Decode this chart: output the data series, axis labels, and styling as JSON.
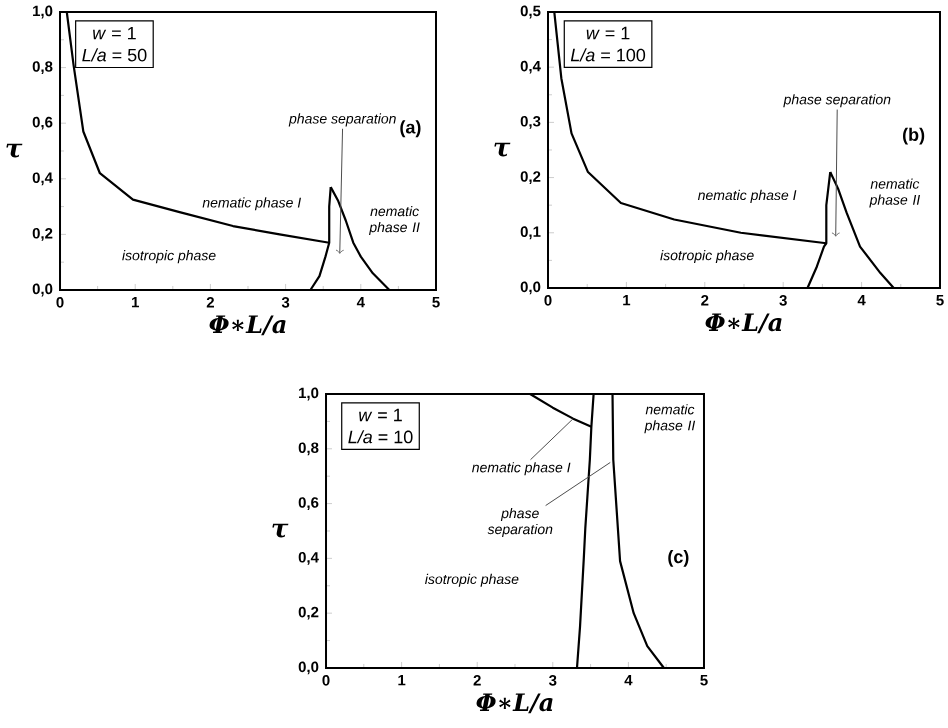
{
  "chart_data": [
    {
      "type": "line",
      "xlabel": "Φ∗L/a",
      "ylabel": "τ",
      "xlim": [
        0,
        5
      ],
      "xticks": [
        0,
        1,
        2,
        3,
        4,
        5
      ],
      "ylim": [
        0,
        1
      ],
      "yticks": [
        {
          "value": 0,
          "label": "0,0"
        },
        {
          "value": 0.2,
          "label": "0,2"
        },
        {
          "value": 0.4,
          "label": "0,4"
        },
        {
          "value": 0.6,
          "label": "0,6"
        },
        {
          "value": 0.8,
          "label": "0,8"
        },
        {
          "value": 1,
          "label": "1,0"
        }
      ],
      "series": [
        {
          "color": "#000000",
          "x": [
            0.09,
            0.18,
            0.31,
            0.53,
            0.97,
            1.59,
            2.3,
            2.92,
            3.58
          ],
          "values": [
            1.0,
            0.81,
            0.57,
            0.42,
            0.325,
            0.28,
            0.23,
            0.2,
            0.17
          ]
        },
        {
          "color": "#000000",
          "x": [
            3.33,
            3.45,
            3.53,
            3.58,
            3.58,
            3.6
          ],
          "values": [
            0,
            0.05,
            0.12,
            0.17,
            0.3,
            0.37
          ]
        },
        {
          "color": "#000000",
          "x": [
            3.6,
            3.7,
            3.8,
            3.9,
            4.0,
            4.16,
            4.38
          ],
          "values": [
            0.37,
            0.32,
            0.25,
            0.17,
            0.12,
            0.06,
            0
          ]
        }
      ],
      "annotations": [
        "*w* = 1",
        "*L/a* = 50",
        "(a)",
        "isotropic phase",
        "nematic phase I",
        "nematic phase II",
        {
          "text": "phase separation",
          "x": 3.72,
          "y": 0.13
        }
      ]
    },
    {
      "type": "line",
      "xlabel": "Φ∗L/a",
      "ylabel": "τ",
      "xlim": [
        0,
        5
      ],
      "xticks": [
        0,
        1,
        2,
        3,
        4,
        5
      ],
      "ylim": [
        0,
        0.5
      ],
      "yticks": [
        {
          "value": 0,
          "label": "0,0"
        },
        {
          "value": 0.1,
          "label": "0,1"
        },
        {
          "value": 0.2,
          "label": "0,2"
        },
        {
          "value": 0.3,
          "label": "0,3"
        },
        {
          "value": 0.4,
          "label": "0,4"
        },
        {
          "value": 0.5,
          "label": "0,5"
        }
      ],
      "series": [
        {
          "color": "#000000",
          "x": [
            0.08,
            0.17,
            0.3,
            0.51,
            0.93,
            1.61,
            2.46,
            3.55
          ],
          "values": [
            0.5,
            0.38,
            0.28,
            0.21,
            0.154,
            0.124,
            0.1,
            0.081
          ]
        },
        {
          "color": "#000000",
          "x": [
            3.31,
            3.43,
            3.52,
            3.55,
            3.55,
            3.6
          ],
          "values": [
            0,
            0.039,
            0.075,
            0.081,
            0.15,
            0.21
          ]
        },
        {
          "color": "#000000",
          "x": [
            3.6,
            3.7,
            3.81,
            3.98,
            4.24,
            4.41
          ],
          "values": [
            0.21,
            0.18,
            0.136,
            0.075,
            0.027,
            0
          ]
        }
      ],
      "annotations": [
        "*w* = 1",
        "*L/a* = 100",
        "(b)",
        "isotropic phase",
        "nematic phase I",
        "nematic phase II",
        {
          "text": "phase separation",
          "x": 3.67,
          "y": 0.093
        }
      ]
    },
    {
      "type": "line",
      "xlabel": "Φ∗L/a",
      "ylabel": "τ",
      "xlim": [
        0,
        5
      ],
      "xticks": [
        0,
        1,
        2,
        3,
        4,
        5
      ],
      "ylim": [
        0,
        1
      ],
      "yticks": [
        {
          "value": 0,
          "label": "0,0"
        },
        {
          "value": 0.2,
          "label": "0,2"
        },
        {
          "value": 0.4,
          "label": "0,4"
        },
        {
          "value": 0.6,
          "label": "0,6"
        },
        {
          "value": 0.8,
          "label": "0,8"
        },
        {
          "value": 1,
          "label": "1,0"
        }
      ],
      "series": [
        {
          "color": "#000000",
          "x": [
            2.7,
            3.0,
            3.27,
            3.51
          ],
          "values": [
            1.0,
            0.95,
            0.91,
            0.88
          ]
        },
        {
          "color": "#000000",
          "x": [
            3.32,
            3.36,
            3.41,
            3.43,
            3.49,
            3.51,
            3.54
          ],
          "values": [
            0,
            0.15,
            0.4,
            0.51,
            0.76,
            0.88,
            1.0
          ]
        },
        {
          "color": "#000000",
          "x": [
            3.79,
            3.8,
            3.89,
            4.07,
            4.25,
            4.47
          ],
          "values": [
            1.0,
            0.76,
            0.39,
            0.2,
            0.08,
            0
          ]
        }
      ],
      "annotations": [
        "*w* = 1",
        "*L/a* = 10",
        "(c)",
        "isotropic phase",
        "nematic phase II",
        {
          "text": "nematic phase I",
          "x": 3.27,
          "y": 0.91
        },
        {
          "text": "phase separation",
          "x": 3.76,
          "y": 0.75
        }
      ]
    }
  ]
}
